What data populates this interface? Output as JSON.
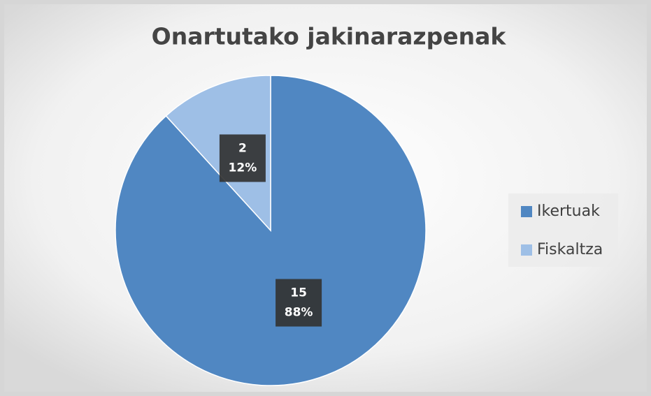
{
  "chart_data": {
    "type": "pie",
    "title": "Onartutako jakinarazpenak",
    "categories": [
      "Ikertuak",
      "Fiskaltza"
    ],
    "values": [
      15,
      2
    ],
    "percent_labels": [
      "88%",
      "12%"
    ],
    "colors": [
      "#5087c2",
      "#9ebfe6"
    ],
    "legend": "right"
  }
}
